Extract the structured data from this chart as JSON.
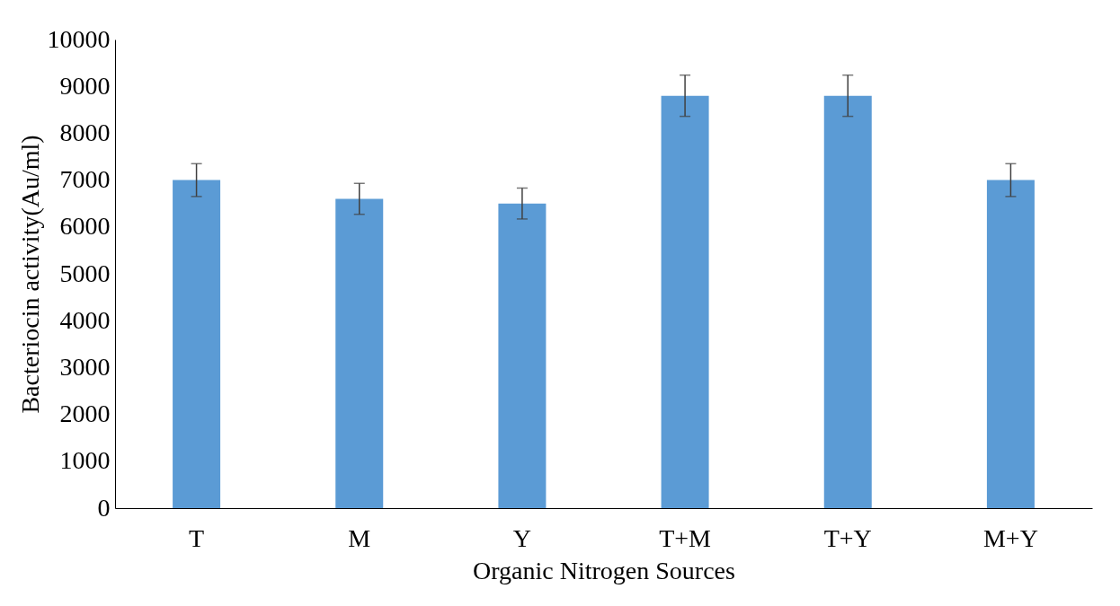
{
  "chart_data": {
    "type": "bar",
    "xlabel": "Organic Nitrogen Sources",
    "ylabel": "Bacteriocin activity(Au/ml)",
    "categories": [
      "T",
      "M",
      "Y",
      "T+M",
      "T+Y",
      "M+Y"
    ],
    "values": [
      7000,
      6600,
      6500,
      8800,
      8800,
      7000
    ],
    "errors": [
      350,
      330,
      330,
      440,
      440,
      350
    ],
    "color": "#5b9bd5",
    "ylim": [
      0,
      10000
    ],
    "yticks": [
      0,
      1000,
      2000,
      3000,
      4000,
      5000,
      6000,
      7000,
      8000,
      9000,
      10000
    ],
    "grid": false
  }
}
